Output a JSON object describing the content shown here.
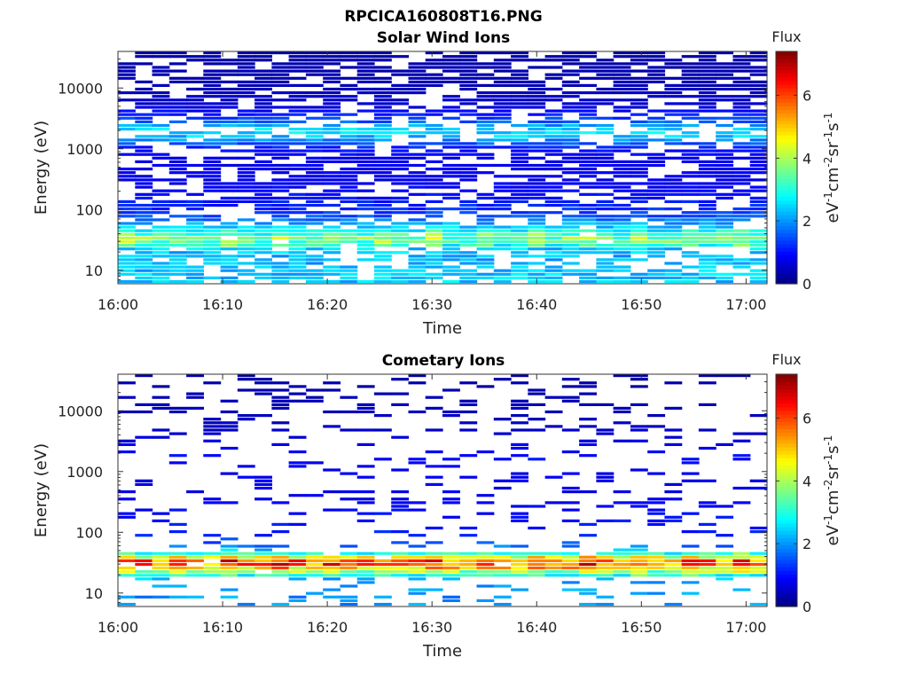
{
  "figure_title": "RPCICA160808T16.PNG",
  "chart_data": [
    {
      "type": "heatmap",
      "title": "Solar Wind Ions",
      "xlabel": "Time",
      "ylabel": "Energy (eV)",
      "y_scale": "log",
      "xlim": [
        "16:00",
        "17:02"
      ],
      "ylim": [
        6,
        40000
      ],
      "x_tick_labels": [
        "16:00",
        "16:10",
        "16:20",
        "16:30",
        "16:40",
        "16:50",
        "17:00"
      ],
      "y_tick_labels": [
        "10",
        "100",
        "1000",
        "10000"
      ],
      "colorbar": {
        "title": "Flux",
        "label": "eV-1cm-2sr-1s-1",
        "range": [
          0,
          7.4
        ],
        "ticks": [
          "0",
          "2",
          "4",
          "6"
        ],
        "colormap": "jet"
      },
      "profile": [
        {
          "energy": 8,
          "flux": 2.4
        },
        {
          "energy": 11,
          "flux": 2.3
        },
        {
          "energy": 16,
          "flux": 2.2
        },
        {
          "energy": 22,
          "flux": 2.4
        },
        {
          "energy": 28,
          "flux": 3.3
        },
        {
          "energy": 33,
          "flux": 3.6
        },
        {
          "energy": 40,
          "flux": 3.0
        },
        {
          "energy": 55,
          "flux": 2.2
        },
        {
          "energy": 80,
          "flux": 1.4
        },
        {
          "energy": 150,
          "flux": 1.0
        },
        {
          "energy": 300,
          "flux": 0.8
        },
        {
          "energy": 600,
          "flux": 0.8
        },
        {
          "energy": 1000,
          "flux": 1.0
        },
        {
          "energy": 1600,
          "flux": 2.4
        },
        {
          "energy": 2000,
          "flux": 2.6
        },
        {
          "energy": 2800,
          "flux": 1.5
        },
        {
          "energy": 5000,
          "flux": 0.6
        },
        {
          "energy": 10000,
          "flux": 0.4
        },
        {
          "energy": 35000,
          "flux": 0.3
        }
      ],
      "coverage": 0.68
    },
    {
      "type": "heatmap",
      "title": "Cometary Ions",
      "xlabel": "Time",
      "ylabel": "Energy (eV)",
      "y_scale": "log",
      "xlim": [
        "16:00",
        "17:02"
      ],
      "ylim": [
        6,
        40000
      ],
      "x_tick_labels": [
        "16:00",
        "16:10",
        "16:20",
        "16:30",
        "16:40",
        "16:50",
        "17:00"
      ],
      "y_tick_labels": [
        "10",
        "100",
        "1000",
        "10000"
      ],
      "colorbar": {
        "title": "Flux",
        "label": "eV-1cm-2sr-1s-1",
        "range": [
          0,
          7.4
        ],
        "ticks": [
          "0",
          "2",
          "4",
          "6"
        ],
        "colormap": "jet"
      },
      "profile": [
        {
          "energy": 8,
          "flux": 2.0
        },
        {
          "energy": 12,
          "flux": 2.0
        },
        {
          "energy": 17,
          "flux": 2.3
        },
        {
          "energy": 21,
          "flux": 3.3
        },
        {
          "energy": 25,
          "flux": 4.8
        },
        {
          "energy": 29,
          "flux": 5.6
        },
        {
          "energy": 33,
          "flux": 5.8
        },
        {
          "energy": 38,
          "flux": 4.4
        },
        {
          "energy": 45,
          "flux": 2.8
        },
        {
          "energy": 60,
          "flux": 1.6
        },
        {
          "energy": 90,
          "flux": 1.2
        },
        {
          "energy": 150,
          "flux": 1.0
        },
        {
          "energy": 400,
          "flux": 0.8
        },
        {
          "energy": 1000,
          "flux": 0.8
        },
        {
          "energy": 1700,
          "flux": 1.0
        },
        {
          "energy": 5000,
          "flux": 0.5
        },
        {
          "energy": 35000,
          "flux": 0.3
        }
      ],
      "coverage": 0.2
    }
  ]
}
